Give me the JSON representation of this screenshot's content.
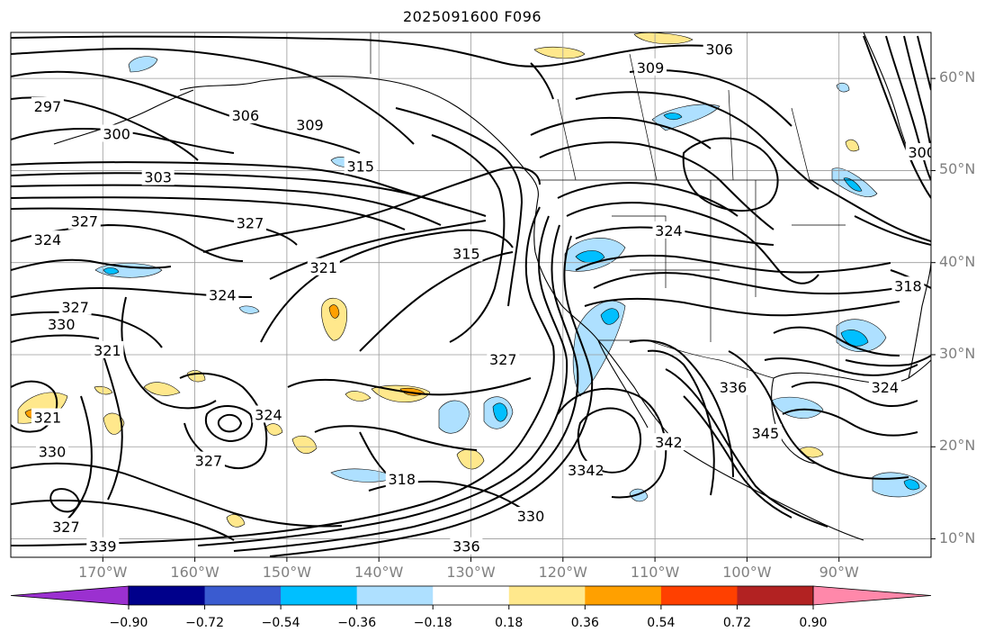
{
  "title": "2025091600 F096",
  "map": {
    "lon_range": [
      -180,
      -80
    ],
    "lat_range": [
      8,
      65
    ],
    "lat_labels": [
      "60°N",
      "50°N",
      "40°N",
      "30°N",
      "20°N",
      "10°N"
    ],
    "lon_labels": [
      "170°W",
      "160°W",
      "150°W",
      "140°W",
      "130°W",
      "120°W",
      "110°W",
      "100°W",
      "90°W"
    ],
    "contour_labels": [
      {
        "text": "306",
        "lon": -103,
        "lat": 63.2
      },
      {
        "text": "309",
        "lon": -110.5,
        "lat": 61.2
      },
      {
        "text": "297",
        "lon": -176,
        "lat": 57
      },
      {
        "text": "300",
        "lon": -168.5,
        "lat": 54
      },
      {
        "text": "306",
        "lon": -154.5,
        "lat": 56
      },
      {
        "text": "309",
        "lon": -147.5,
        "lat": 55
      },
      {
        "text": "315",
        "lon": -142,
        "lat": 50.5
      },
      {
        "text": "303",
        "lon": -164,
        "lat": 49.3
      },
      {
        "text": "327",
        "lon": -172,
        "lat": 44.5
      },
      {
        "text": "324",
        "lon": -176,
        "lat": 42.5
      },
      {
        "text": "327",
        "lon": -154,
        "lat": 44.3
      },
      {
        "text": "315",
        "lon": -130.5,
        "lat": 41
      },
      {
        "text": "321",
        "lon": -146,
        "lat": 39.5
      },
      {
        "text": "324",
        "lon": -157,
        "lat": 36.5
      },
      {
        "text": "327",
        "lon": -173,
        "lat": 35.2
      },
      {
        "text": "330",
        "lon": -174.5,
        "lat": 33.3
      },
      {
        "text": "321",
        "lon": -169.5,
        "lat": 30.5
      },
      {
        "text": "324",
        "lon": -108.5,
        "lat": 43.5
      },
      {
        "text": "318",
        "lon": -82.5,
        "lat": 37.5
      },
      {
        "text": "324",
        "lon": -85,
        "lat": 26.5
      },
      {
        "text": "300",
        "lon": -81,
        "lat": 52
      },
      {
        "text": "327",
        "lon": -126.5,
        "lat": 29.5
      },
      {
        "text": "336",
        "lon": -101.5,
        "lat": 26.5
      },
      {
        "text": "324",
        "lon": -152,
        "lat": 23.5
      },
      {
        "text": "342",
        "lon": -108.5,
        "lat": 20.5
      },
      {
        "text": "345",
        "lon": -98,
        "lat": 21.5
      },
      {
        "text": "3342",
        "lon": -117.5,
        "lat": 17.5
      },
      {
        "text": "321",
        "lon": -176,
        "lat": 23.2
      },
      {
        "text": "327",
        "lon": -158.5,
        "lat": 18.5
      },
      {
        "text": "330",
        "lon": -175.5,
        "lat": 19.5
      },
      {
        "text": "318",
        "lon": -137.5,
        "lat": 16.5
      },
      {
        "text": "327",
        "lon": -174,
        "lat": 11.3
      },
      {
        "text": "330",
        "lon": -123.5,
        "lat": 12.5
      },
      {
        "text": "339",
        "lon": -170,
        "lat": 9.2
      },
      {
        "text": "336",
        "lon": -130.5,
        "lat": 9.2
      }
    ]
  },
  "colorbar": {
    "ticks": [
      "−0.90",
      "−0.72",
      "−0.54",
      "−0.36",
      "−0.18",
      "0.18",
      "0.36",
      "0.54",
      "0.72",
      "0.90"
    ],
    "under_color": "#9b30d0",
    "over_color": "#ff88aa",
    "colors": [
      "#00008b",
      "#3a5bd0",
      "#00bfff",
      "#aee0ff",
      "#ffffff",
      "#ffe88c",
      "#ffa000",
      "#ff4000",
      "#b22222"
    ]
  },
  "shading_colors": {
    "neg_light": "#aee0ff",
    "neg_mid": "#00bfff",
    "pos_light": "#ffe88c",
    "pos_mid": "#ffa000"
  }
}
